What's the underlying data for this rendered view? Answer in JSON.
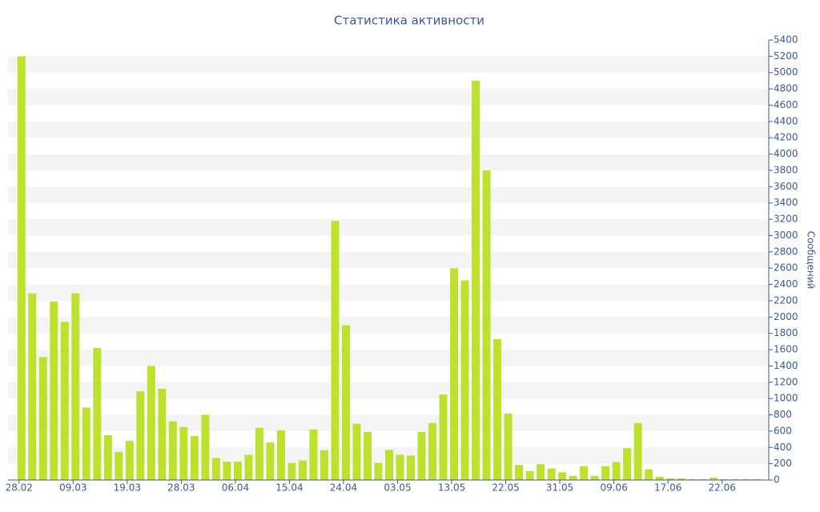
{
  "chart_data": {
    "type": "bar",
    "title": "Статистика активности",
    "y_axis_label": "Сообщений",
    "categories": [
      "28.02",
      null,
      null,
      null,
      null,
      "09.03",
      null,
      null,
      null,
      null,
      "19.03",
      null,
      null,
      null,
      null,
      "28.03",
      null,
      null,
      null,
      null,
      "06.04",
      null,
      null,
      null,
      null,
      "15.04",
      null,
      null,
      null,
      null,
      "24.04",
      null,
      null,
      null,
      null,
      "03.05",
      null,
      null,
      null,
      null,
      "13.05",
      null,
      null,
      null,
      null,
      "22.05",
      null,
      null,
      null,
      null,
      "31.05",
      null,
      null,
      null,
      null,
      "09.06",
      null,
      null,
      null,
      null,
      "17.06",
      null,
      null,
      null,
      null,
      "22.06",
      null,
      null,
      null
    ],
    "values": [
      5200,
      2290,
      1510,
      2190,
      1940,
      2290,
      890,
      1620,
      550,
      345,
      480,
      1090,
      1400,
      1120,
      720,
      650,
      540,
      800,
      270,
      225,
      225,
      310,
      640,
      460,
      610,
      210,
      240,
      620,
      365,
      3180,
      1900,
      690,
      590,
      210,
      370,
      310,
      300,
      590,
      700,
      1050,
      2600,
      2450,
      4900,
      3800,
      1730,
      815,
      185,
      110,
      195,
      140,
      95,
      50,
      170,
      50,
      170,
      220,
      390,
      700,
      130,
      40,
      20,
      20,
      10,
      10,
      30,
      10,
      10,
      10,
      10
    ],
    "color": "#bde22e",
    "ylim": [
      0,
      5400
    ],
    "yticks": [
      0,
      200,
      400,
      600,
      800,
      1000,
      1200,
      1400,
      1600,
      1800,
      2000,
      2200,
      2400,
      2600,
      2800,
      3000,
      3200,
      3400,
      3600,
      3800,
      4000,
      4200,
      4400,
      4600,
      4800,
      5000,
      5200,
      5400
    ],
    "grid": "bands",
    "y_axis_side": "right"
  }
}
